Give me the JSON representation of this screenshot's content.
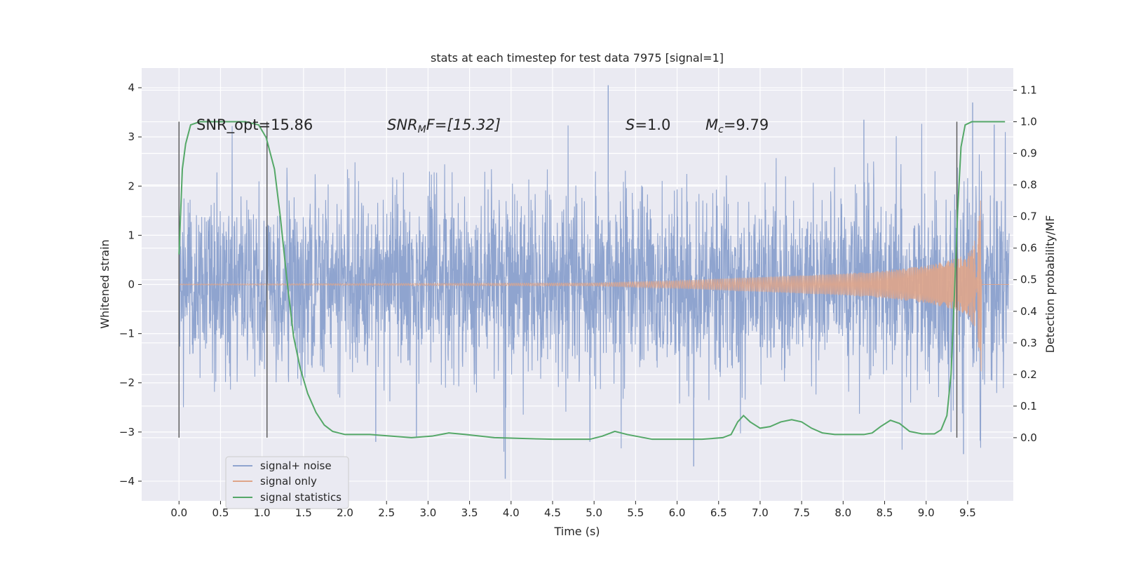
{
  "chart_data": {
    "type": "line",
    "title": "stats at each timestep for test data 7975 [signal=1]",
    "xlabel": "Time (s)",
    "ylabel": "Whitened strain",
    "y2label": "Detection probability/MF",
    "xlim": [
      -0.45,
      10.05
    ],
    "ylim": [
      -4.4,
      4.4
    ],
    "y2lim": [
      -0.2,
      1.17
    ],
    "x_ticks": [
      "0.0",
      "0.5",
      "1.0",
      "1.5",
      "2.0",
      "2.5",
      "3.0",
      "3.5",
      "4.0",
      "4.5",
      "5.0",
      "5.5",
      "6.0",
      "6.5",
      "7.0",
      "7.5",
      "8.0",
      "8.5",
      "9.0",
      "9.5"
    ],
    "y_ticks": [
      "4",
      "3",
      "2",
      "1",
      "0",
      "−1",
      "−2",
      "−3",
      "−4"
    ],
    "y2_ticks": [
      "1.1",
      "1.0",
      "0.9",
      "0.8",
      "0.7",
      "0.6",
      "0.5",
      "0.4",
      "0.3",
      "0.2",
      "0.1",
      "0.0"
    ],
    "grid": true,
    "legend_position": "lower-left",
    "annotations": {
      "snr_opt": "SNR_opt=15.86",
      "snr_mf_base": "SNR",
      "snr_mf_sub": "M",
      "snr_mf_rest": "F=[15.32]",
      "s_base": "S",
      "s_rest": "=1.0",
      "mc_base": "M",
      "mc_sub": "c",
      "mc_rest": "=9.79"
    },
    "vertical_markers": [
      0.0,
      1.06,
      9.37
    ],
    "series": [
      {
        "name": "signal+ noise",
        "color": "#8fa4cf",
        "description_sampled": "dense noise band",
        "x_range": [
          0.0,
          10.0
        ],
        "typical_amplitude": 1.3,
        "extreme_peaks": [
          {
            "x": 5.17,
            "y": 4.05
          },
          {
            "x": 3.93,
            "y": -3.95
          },
          {
            "x": 6.2,
            "y": -3.7
          },
          {
            "x": 9.56,
            "y": 3.7
          },
          {
            "x": 9.45,
            "y": -3.45
          },
          {
            "x": 2.37,
            "y": -3.2
          },
          {
            "x": 2.86,
            "y": -3.1
          },
          {
            "x": 4.95,
            "y": -3.2
          },
          {
            "x": 9.3,
            "y": -3.0
          },
          {
            "x": 8.25,
            "y": 3.35
          },
          {
            "x": 9.82,
            "y": 3.25
          }
        ]
      },
      {
        "name": "signal only",
        "color": "#dfa589",
        "envelope": [
          {
            "x": 0.0,
            "y": 0.01
          },
          {
            "x": 5.0,
            "y": 0.03
          },
          {
            "x": 6.0,
            "y": 0.08
          },
          {
            "x": 7.0,
            "y": 0.15
          },
          {
            "x": 8.0,
            "y": 0.22
          },
          {
            "x": 8.5,
            "y": 0.28
          },
          {
            "x": 9.0,
            "y": 0.38
          },
          {
            "x": 9.3,
            "y": 0.5
          },
          {
            "x": 9.5,
            "y": 0.62
          },
          {
            "x": 9.6,
            "y": 0.95
          },
          {
            "x": 9.65,
            "y": 1.6
          },
          {
            "x": 9.67,
            "y": 2.2
          }
        ]
      },
      {
        "name": "signal statistics",
        "color": "#55a868",
        "axis": "right",
        "points": [
          [
            0.0,
            0.58
          ],
          [
            0.04,
            0.85
          ],
          [
            0.08,
            0.93
          ],
          [
            0.14,
            0.99
          ],
          [
            0.25,
            1.0
          ],
          [
            0.5,
            1.0
          ],
          [
            0.8,
            1.0
          ],
          [
            0.96,
            0.99
          ],
          [
            1.05,
            0.95
          ],
          [
            1.15,
            0.85
          ],
          [
            1.22,
            0.7
          ],
          [
            1.3,
            0.5
          ],
          [
            1.38,
            0.32
          ],
          [
            1.46,
            0.22
          ],
          [
            1.55,
            0.14
          ],
          [
            1.65,
            0.08
          ],
          [
            1.75,
            0.04
          ],
          [
            1.85,
            0.02
          ],
          [
            2.0,
            0.01
          ],
          [
            2.3,
            0.01
          ],
          [
            2.8,
            0.0
          ],
          [
            3.05,
            0.005
          ],
          [
            3.25,
            0.015
          ],
          [
            3.45,
            0.01
          ],
          [
            3.8,
            0.0
          ],
          [
            4.5,
            -0.005
          ],
          [
            4.95,
            -0.005
          ],
          [
            5.1,
            0.005
          ],
          [
            5.25,
            0.02
          ],
          [
            5.4,
            0.01
          ],
          [
            5.7,
            -0.005
          ],
          [
            6.3,
            -0.005
          ],
          [
            6.55,
            0.0
          ],
          [
            6.65,
            0.01
          ],
          [
            6.73,
            0.05
          ],
          [
            6.8,
            0.07
          ],
          [
            6.88,
            0.05
          ],
          [
            7.0,
            0.03
          ],
          [
            7.12,
            0.035
          ],
          [
            7.25,
            0.05
          ],
          [
            7.38,
            0.057
          ],
          [
            7.5,
            0.05
          ],
          [
            7.62,
            0.03
          ],
          [
            7.75,
            0.015
          ],
          [
            7.9,
            0.01
          ],
          [
            8.25,
            0.01
          ],
          [
            8.35,
            0.015
          ],
          [
            8.45,
            0.035
          ],
          [
            8.57,
            0.055
          ],
          [
            8.68,
            0.045
          ],
          [
            8.8,
            0.02
          ],
          [
            8.95,
            0.012
          ],
          [
            9.1,
            0.012
          ],
          [
            9.18,
            0.025
          ],
          [
            9.25,
            0.07
          ],
          [
            9.3,
            0.2
          ],
          [
            9.34,
            0.45
          ],
          [
            9.38,
            0.72
          ],
          [
            9.42,
            0.92
          ],
          [
            9.47,
            0.99
          ],
          [
            9.55,
            1.0
          ],
          [
            9.75,
            1.0
          ],
          [
            9.95,
            1.0
          ]
        ]
      }
    ]
  }
}
